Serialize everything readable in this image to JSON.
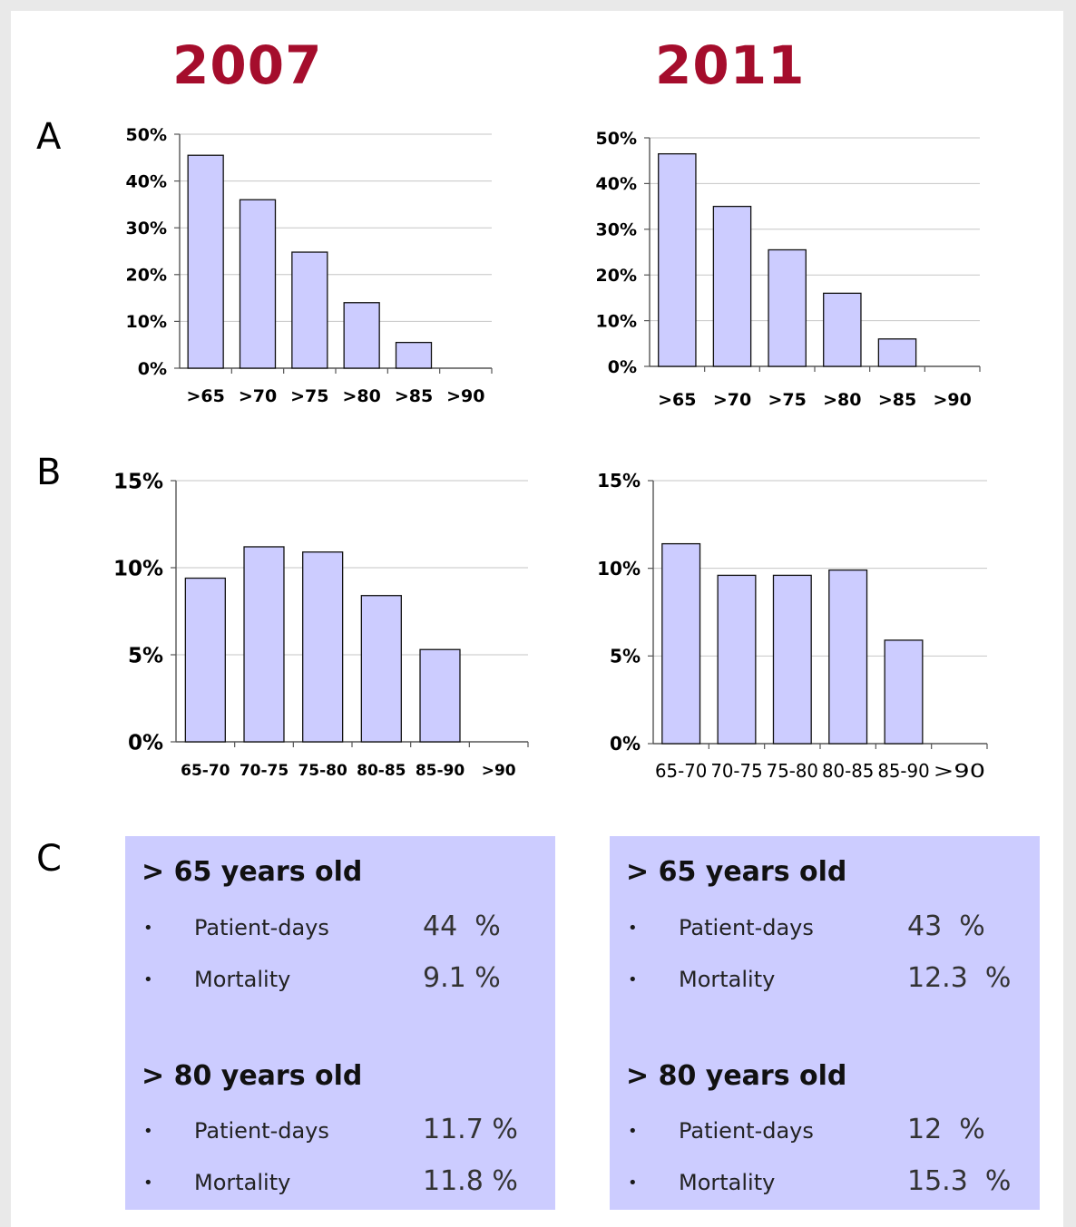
{
  "years": {
    "left": "2007",
    "right": "2011"
  },
  "panels": {
    "a": "A",
    "b": "B",
    "c": "C"
  },
  "chart_data": [
    {
      "id": "A-2007",
      "type": "bar",
      "categories": [
        ">65",
        ">70",
        ">75",
        ">80",
        ">85",
        ">90"
      ],
      "values": [
        45.5,
        36,
        24.8,
        14,
        5.5,
        0
      ],
      "ylim": [
        0,
        50
      ],
      "yticks": [
        "0%",
        "10%",
        "20%",
        "30%",
        "40%",
        "50%"
      ],
      "grid": true,
      "bar_color": "#ccccff",
      "xlabel": "",
      "ylabel": ""
    },
    {
      "id": "A-2011",
      "type": "bar",
      "categories": [
        ">65",
        ">70",
        ">75",
        ">80",
        ">85",
        ">90"
      ],
      "values": [
        46.5,
        35,
        25.5,
        16,
        6,
        0
      ],
      "ylim": [
        0,
        50
      ],
      "yticks": [
        "0%",
        "10%",
        "20%",
        "30%",
        "40%",
        "50%"
      ],
      "grid": true,
      "bar_color": "#ccccff",
      "xlabel": "",
      "ylabel": ""
    },
    {
      "id": "B-2007",
      "type": "bar",
      "categories": [
        "65-70",
        "70-75",
        "75-80",
        "80-85",
        "85-90",
        ">90"
      ],
      "values": [
        9.4,
        11.2,
        10.9,
        8.4,
        5.3,
        0
      ],
      "ylim": [
        0,
        15
      ],
      "yticks": [
        "0%",
        "5%",
        "10%",
        "15%"
      ],
      "grid": true,
      "bar_color": "#ccccff",
      "xlabel": "",
      "ylabel": ""
    },
    {
      "id": "B-2011",
      "type": "bar",
      "categories": [
        "65-70",
        "70-75",
        "75-80",
        "80-85",
        "85-90",
        ">90"
      ],
      "values": [
        11.4,
        9.6,
        9.6,
        9.9,
        5.9,
        0
      ],
      "ylim": [
        0,
        15
      ],
      "yticks": [
        "0%",
        "5%",
        "10%",
        "15%"
      ],
      "grid": true,
      "bar_color": "#ccccff",
      "xlabel": "",
      "ylabel": ""
    }
  ],
  "stats": {
    "left": {
      "g65": {
        "title": "> 65 years old",
        "patient_days_label": "Patient-days",
        "patient_days": "44  %",
        "mortality_label": "Mortality",
        "mortality": "9.1 %"
      },
      "g80": {
        "title": "> 80 years old",
        "patient_days_label": "Patient-days",
        "patient_days": "11.7 %",
        "mortality_label": "Mortality",
        "mortality": "11.8 %"
      }
    },
    "right": {
      "g65": {
        "title": "> 65 years old",
        "patient_days_label": "Patient-days",
        "patient_days": "43  %",
        "mortality_label": "Mortality",
        "mortality": "12.3  %"
      },
      "g80": {
        "title": "> 80 years old",
        "patient_days_label": "Patient-days",
        "patient_days": "12  %",
        "mortality_label": "Mortality",
        "mortality": "15.3  %"
      }
    }
  },
  "bullet_glyph": "•"
}
